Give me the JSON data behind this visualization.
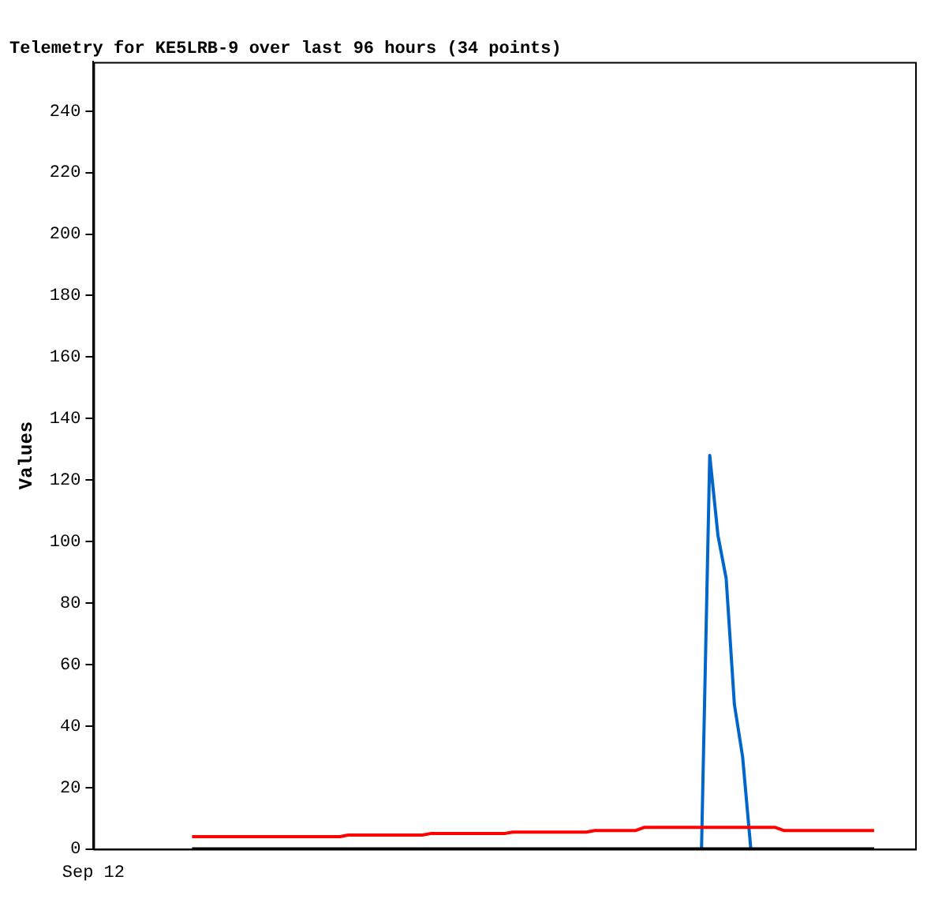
{
  "chart_data": {
    "type": "line",
    "title": "Telemetry for KE5LRB-9 over last 96 hours (34 points)",
    "ylabel": "Values",
    "categories": [
      "Sep 12",
      null,
      null,
      null,
      null,
      null,
      null,
      null,
      null,
      null,
      null,
      null,
      null,
      null,
      null,
      null,
      null,
      null,
      null,
      null,
      null,
      null,
      null,
      null,
      null,
      null,
      null,
      null,
      null,
      null,
      null,
      null,
      null,
      null,
      null,
      null,
      null,
      null,
      null,
      null,
      null,
      null,
      null,
      null,
      null,
      null,
      null,
      null,
      null,
      null,
      null,
      null,
      null,
      null,
      null,
      null,
      null,
      null,
      null,
      null,
      null,
      null,
      null,
      null,
      null,
      null,
      null,
      null,
      null,
      null,
      null,
      null,
      null,
      null,
      null,
      null,
      null,
      null,
      null,
      null,
      null,
      null,
      null,
      null,
      null,
      null,
      null,
      null,
      null,
      null,
      null,
      null,
      null,
      null,
      null,
      null,
      null,
      null,
      null,
      null,
      null
    ],
    "ylim": [
      0,
      256
    ],
    "yticks": [
      0,
      20,
      40,
      60,
      80,
      100,
      120,
      140,
      160,
      180,
      200,
      220,
      240
    ],
    "grid": false,
    "legend": false,
    "marker": "none",
    "line_style": "solid",
    "series": [
      {
        "color": "#000000",
        "values": [
          null,
          null,
          null,
          null,
          null,
          null,
          null,
          null,
          null,
          null,
          null,
          null,
          0,
          0,
          0,
          0,
          0,
          0,
          0,
          0,
          0,
          0,
          0,
          0,
          0,
          0,
          0,
          0,
          0,
          0,
          0,
          0,
          0,
          0,
          0,
          0,
          0,
          0,
          0,
          0,
          0,
          0,
          0,
          0,
          0,
          0,
          0,
          0,
          0,
          0,
          0,
          0,
          0,
          0,
          0,
          0,
          0,
          0,
          0,
          0,
          0,
          0,
          0,
          0,
          0,
          0,
          0,
          0,
          0,
          0,
          0,
          0,
          0,
          0,
          0,
          0,
          0,
          0,
          0,
          0,
          0,
          0,
          0,
          0,
          0,
          0,
          0,
          0,
          0,
          0,
          0,
          0,
          0,
          0,
          0,
          0,
          null,
          null,
          null,
          null,
          null
        ]
      },
      {
        "color": "#ff0000",
        "values": [
          null,
          null,
          null,
          null,
          null,
          null,
          null,
          null,
          null,
          null,
          null,
          null,
          4,
          4,
          4,
          4,
          4,
          4,
          4,
          4,
          4,
          4,
          4,
          4,
          4,
          4,
          4,
          4,
          4,
          4,
          4,
          4.5,
          4.5,
          4.5,
          4.5,
          4.5,
          4.5,
          4.5,
          4.5,
          4.5,
          4.5,
          5,
          5,
          5,
          5,
          5,
          5,
          5,
          5,
          5,
          5,
          5.5,
          5.5,
          5.5,
          5.5,
          5.5,
          5.5,
          5.5,
          5.5,
          5.5,
          5.5,
          6,
          6,
          6,
          6,
          6,
          6,
          7,
          7,
          7,
          7,
          7,
          7,
          7,
          7,
          7,
          7,
          7,
          7,
          7,
          7,
          7,
          7,
          7,
          6,
          6,
          6,
          6,
          6,
          6,
          6,
          6,
          6,
          6,
          6,
          6,
          null,
          null,
          null,
          null,
          null
        ]
      },
      {
        "color": "#0066cc",
        "values": [
          null,
          null,
          null,
          null,
          null,
          null,
          null,
          null,
          null,
          null,
          null,
          null,
          null,
          null,
          null,
          null,
          null,
          null,
          null,
          null,
          null,
          null,
          null,
          null,
          null,
          null,
          null,
          null,
          null,
          null,
          null,
          null,
          null,
          null,
          null,
          null,
          null,
          null,
          null,
          null,
          null,
          null,
          null,
          null,
          null,
          null,
          null,
          null,
          null,
          null,
          null,
          null,
          null,
          null,
          null,
          null,
          null,
          null,
          null,
          null,
          null,
          null,
          null,
          null,
          null,
          null,
          null,
          null,
          null,
          null,
          null,
          null,
          null,
          null,
          0,
          128,
          102,
          88,
          47,
          30,
          0,
          null,
          null,
          null,
          null,
          null,
          null,
          null,
          null,
          null,
          null,
          null,
          null,
          null,
          null,
          null,
          null,
          null,
          null,
          null,
          null
        ]
      }
    ]
  }
}
